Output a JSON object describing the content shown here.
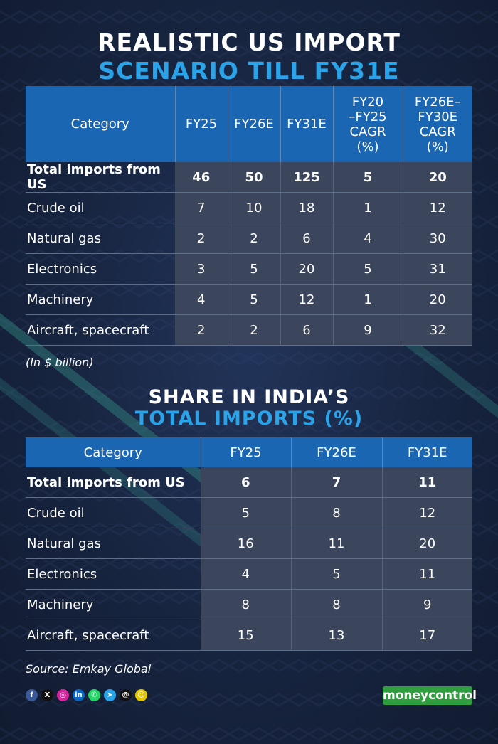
{
  "title": {
    "line1": "REALISTIC US IMPORT",
    "line2": "SCENARIO TILL FY31E"
  },
  "table1": {
    "headers": [
      "Category",
      "FY25",
      "FY26E",
      "FY31E",
      "FY20\n–FY25\nCAGR\n(%)",
      "FY26E–\nFY30E\nCAGR\n(%)"
    ],
    "rows": [
      [
        "Total imports from US",
        "46",
        "50",
        "125",
        "5",
        "20"
      ],
      [
        "Crude oil",
        "7",
        "10",
        "18",
        "1",
        "12"
      ],
      [
        "Natural gas",
        "2",
        "2",
        "6",
        "4",
        "30"
      ],
      [
        "Electronics",
        "3",
        "5",
        "20",
        "5",
        "31"
      ],
      [
        "Machinery",
        "4",
        "5",
        "12",
        "1",
        "20"
      ],
      [
        "Aircraft, spacecraft",
        "2",
        "2",
        "6",
        "9",
        "32"
      ]
    ],
    "note": "(In $ billion)"
  },
  "subtitle": {
    "line1": "SHARE IN INDIA’S",
    "line2": "TOTAL IMPORTS (%)"
  },
  "table2": {
    "headers": [
      "Category",
      "FY25",
      "FY26E",
      "FY31E"
    ],
    "rows": [
      [
        "Total imports from US",
        "6",
        "7",
        "11"
      ],
      [
        "Crude oil",
        "5",
        "8",
        "12"
      ],
      [
        "Natural gas",
        "16",
        "11",
        "20"
      ],
      [
        "Electronics",
        "4",
        "5",
        "11"
      ],
      [
        "Machinery",
        "8",
        "8",
        "9"
      ],
      [
        "Aircraft, spacecraft",
        "15",
        "13",
        "17"
      ]
    ]
  },
  "source": "Source: Emkay Global",
  "social_icons": [
    {
      "name": "facebook-icon",
      "glyph": "f",
      "color": "#3b5998"
    },
    {
      "name": "x-icon",
      "glyph": "X",
      "color": "#111111"
    },
    {
      "name": "instagram-icon",
      "glyph": "◎",
      "color": "#d6249f"
    },
    {
      "name": "linkedin-icon",
      "glyph": "in",
      "color": "#0a66c2"
    },
    {
      "name": "whatsapp-icon",
      "glyph": "✆",
      "color": "#25d366"
    },
    {
      "name": "telegram-icon",
      "glyph": "➤",
      "color": "#2aa3e8"
    },
    {
      "name": "threads-icon",
      "glyph": "@",
      "color": "#111111"
    },
    {
      "name": "snapchat-icon",
      "glyph": "☺",
      "color": "#e6c800"
    }
  ],
  "brand": "moneycontrol",
  "colors": {
    "background": "#15223a",
    "header_blue": "#1b66b3",
    "title_accent": "#2aa3e8",
    "cell_gray": "#3b465c",
    "brand_green": "#2f9e3e"
  }
}
